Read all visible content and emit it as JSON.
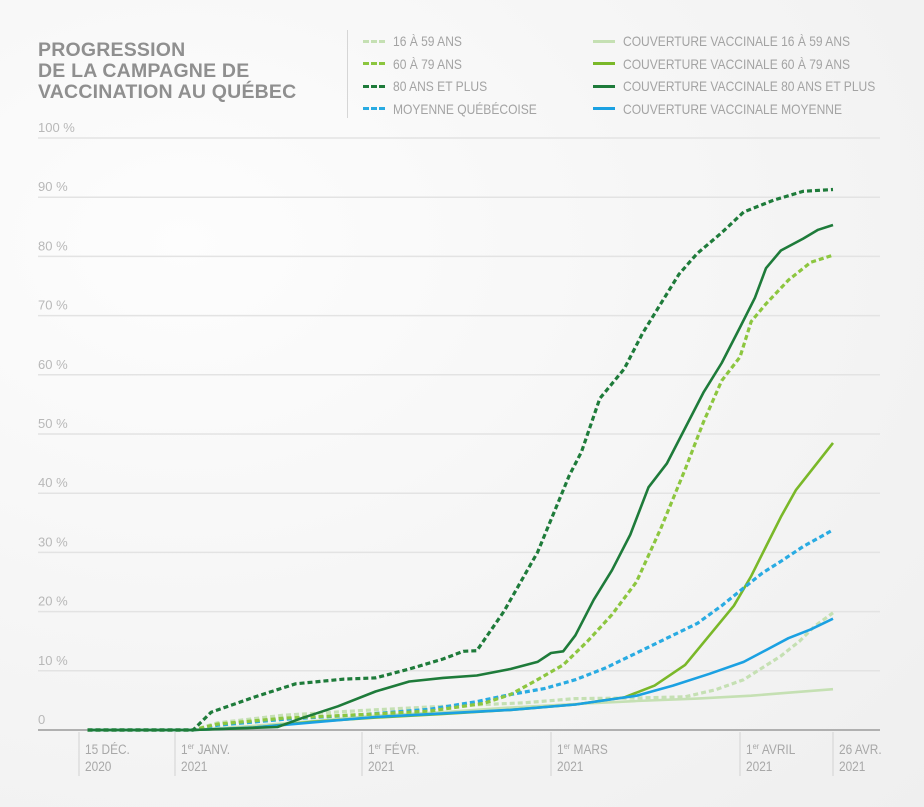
{
  "chart_data": {
    "type": "line",
    "title": "PROGRESSION DE LA CAMPAGNE DE VACCINATION AU QUÉBEC",
    "title_lines": [
      "PROGRESSION",
      "DE LA CAMPAGNE DE",
      "VACCINATION AU QUÉBEC"
    ],
    "xlabel": "",
    "ylabel": "",
    "x_unit": "days since 15 Dec 2020",
    "xlim": [
      0,
      132
    ],
    "ylim": [
      0,
      100
    ],
    "grid": true,
    "legend_position": "top-right",
    "y_ticks": [
      {
        "value": 0,
        "label": "0"
      },
      {
        "value": 10,
        "label": "10 %"
      },
      {
        "value": 20,
        "label": "20 %"
      },
      {
        "value": 30,
        "label": "30 %"
      },
      {
        "value": 40,
        "label": "40 %"
      },
      {
        "value": 50,
        "label": "50 %"
      },
      {
        "value": 60,
        "label": "60 %"
      },
      {
        "value": 70,
        "label": "70 %"
      },
      {
        "value": 80,
        "label": "80 %"
      },
      {
        "value": 90,
        "label": "90 %"
      },
      {
        "value": 100,
        "label": "100 %"
      }
    ],
    "x_ticks": [
      {
        "value": 0,
        "line1": "15 DÉC.",
        "sup": "",
        "line1b": "",
        "line2": "2020"
      },
      {
        "value": 17,
        "line1": "1",
        "sup": "er",
        "line1b": " JANV.",
        "line2": "2021"
      },
      {
        "value": 48,
        "line1": "1",
        "sup": "er",
        "line1b": " FÉVR.",
        "line2": "2021"
      },
      {
        "value": 76,
        "line1": "1",
        "sup": "er",
        "line1b": " MARS",
        "line2": "2021"
      },
      {
        "value": 107,
        "line1": "1",
        "sup": "er",
        "line1b": " AVRIL",
        "line2": "2021"
      },
      {
        "value": 132,
        "line1": "26 AVR.",
        "sup": "",
        "line1b": "",
        "line2": "2021"
      }
    ],
    "series": [
      {
        "name": "16 À 59 ANS",
        "style": "dashed",
        "color": "#c5e0b3",
        "points": [
          [
            1.5,
            0
          ],
          [
            20,
            0
          ],
          [
            24,
            1.2
          ],
          [
            35,
            2.5
          ],
          [
            48,
            3.3
          ],
          [
            60,
            4.0
          ],
          [
            72,
            4.6
          ],
          [
            80,
            5.3
          ],
          [
            90,
            5.4
          ],
          [
            98,
            5.6
          ],
          [
            103,
            6.8
          ],
          [
            108,
            8.5
          ],
          [
            113,
            10.5
          ],
          [
            118,
            12.5
          ],
          [
            123,
            15
          ],
          [
            127,
            17.5
          ],
          [
            132,
            19.8
          ]
        ]
      },
      {
        "name": "60 À 79 ANS",
        "style": "dashed",
        "color": "#8cc63f",
        "points": [
          [
            1.5,
            0
          ],
          [
            20,
            0
          ],
          [
            24,
            1
          ],
          [
            35,
            2
          ],
          [
            48,
            2.6
          ],
          [
            58,
            3.2
          ],
          [
            66,
            4.5
          ],
          [
            70,
            6
          ],
          [
            74,
            8.5
          ],
          [
            78,
            11
          ],
          [
            82,
            15
          ],
          [
            86,
            19.5
          ],
          [
            90,
            25
          ],
          [
            94,
            34
          ],
          [
            98,
            44
          ],
          [
            101,
            52
          ],
          [
            104,
            59
          ],
          [
            107,
            63
          ],
          [
            110,
            69
          ],
          [
            114,
            72
          ],
          [
            120,
            76
          ],
          [
            126,
            79
          ],
          [
            132,
            80.2
          ]
        ]
      },
      {
        "name": "80 ANS ET PLUS",
        "style": "dashed",
        "color": "#1e7b3a",
        "points": [
          [
            1.5,
            0
          ],
          [
            20,
            0
          ],
          [
            23,
            3
          ],
          [
            30,
            5.5
          ],
          [
            37,
            7.8
          ],
          [
            45,
            8.6
          ],
          [
            50,
            8.8
          ],
          [
            55,
            10.3
          ],
          [
            60,
            12
          ],
          [
            63,
            13.3
          ],
          [
            65,
            13.4
          ],
          [
            69,
            20
          ],
          [
            74,
            30
          ],
          [
            77,
            38
          ],
          [
            79,
            43
          ],
          [
            81,
            47
          ],
          [
            84,
            56
          ],
          [
            88,
            61
          ],
          [
            91,
            67
          ],
          [
            94,
            72
          ],
          [
            97,
            77
          ],
          [
            100,
            80.5
          ],
          [
            104,
            84
          ],
          [
            108,
            87.5
          ],
          [
            116,
            89.5
          ],
          [
            124,
            91
          ],
          [
            132,
            91.3
          ]
        ]
      },
      {
        "name": "MOYENNE QUÉBÉCOISE",
        "style": "dashed",
        "color": "#29abe2",
        "points": [
          [
            1.5,
            0
          ],
          [
            20,
            0
          ],
          [
            24,
            0.8
          ],
          [
            35,
            1.8
          ],
          [
            48,
            2.6
          ],
          [
            58,
            3.5
          ],
          [
            65,
            4.8
          ],
          [
            70,
            6
          ],
          [
            75,
            7
          ],
          [
            80,
            8.5
          ],
          [
            85,
            10.5
          ],
          [
            90,
            13
          ],
          [
            95,
            15.5
          ],
          [
            100,
            18
          ],
          [
            104,
            21
          ],
          [
            108,
            24
          ],
          [
            113,
            26.5
          ],
          [
            118,
            28.5
          ],
          [
            124,
            31
          ],
          [
            132,
            33.8
          ]
        ]
      },
      {
        "name": "COUVERTURE VACCINALE 16 À 59 ANS",
        "style": "solid",
        "color": "#c5e0b3",
        "points": [
          [
            1.5,
            0
          ],
          [
            20,
            0
          ],
          [
            30,
            0.7
          ],
          [
            40,
            1.5
          ],
          [
            50,
            2.4
          ],
          [
            60,
            3
          ],
          [
            70,
            3.8
          ],
          [
            80,
            4.4
          ],
          [
            90,
            4.9
          ],
          [
            100,
            5.3
          ],
          [
            110,
            5.8
          ],
          [
            120,
            6.3
          ],
          [
            132,
            6.9
          ]
        ]
      },
      {
        "name": "COUVERTURE VACCINALE 60 À 79 ANS",
        "style": "solid",
        "color": "#7ab829",
        "points": [
          [
            1.5,
            0
          ],
          [
            20,
            0
          ],
          [
            30,
            0.4
          ],
          [
            40,
            1.4
          ],
          [
            50,
            2.1
          ],
          [
            60,
            2.7
          ],
          [
            70,
            3.4
          ],
          [
            80,
            4.3
          ],
          [
            88,
            5.5
          ],
          [
            93,
            7.5
          ],
          [
            98,
            11
          ],
          [
            102,
            16
          ],
          [
            106,
            21
          ],
          [
            110,
            26
          ],
          [
            114,
            31
          ],
          [
            118,
            36
          ],
          [
            122,
            40.5
          ],
          [
            127,
            44.5
          ],
          [
            132,
            48.5
          ]
        ]
      },
      {
        "name": "COUVERTURE VACCINALE 80 ANS ET PLUS",
        "style": "solid",
        "color": "#1e7b3a",
        "points": [
          [
            1.5,
            0
          ],
          [
            20,
            0
          ],
          [
            34,
            0.5
          ],
          [
            38,
            2
          ],
          [
            44,
            4
          ],
          [
            50,
            6.5
          ],
          [
            55,
            8.2
          ],
          [
            60,
            8.8
          ],
          [
            65,
            9.2
          ],
          [
            70,
            10.3
          ],
          [
            74,
            11.5
          ],
          [
            76,
            13
          ],
          [
            78,
            13.3
          ],
          [
            80,
            16
          ],
          [
            83,
            22
          ],
          [
            86,
            27
          ],
          [
            89,
            33
          ],
          [
            92,
            41
          ],
          [
            95,
            45
          ],
          [
            98,
            51
          ],
          [
            101,
            57
          ],
          [
            104,
            62
          ],
          [
            107,
            68
          ],
          [
            111,
            73
          ],
          [
            114,
            78
          ],
          [
            118,
            81
          ],
          [
            124,
            83
          ],
          [
            128,
            84.5
          ],
          [
            132,
            85.3
          ]
        ]
      },
      {
        "name": "COUVERTURE VACCINALE MOYENNE",
        "style": "solid",
        "color": "#1ba1e2",
        "points": [
          [
            1.5,
            0
          ],
          [
            20,
            0
          ],
          [
            30,
            0.4
          ],
          [
            40,
            1.3
          ],
          [
            50,
            2.2
          ],
          [
            60,
            2.8
          ],
          [
            70,
            3.4
          ],
          [
            80,
            4.3
          ],
          [
            90,
            5.8
          ],
          [
            96,
            7.5
          ],
          [
            102,
            9.5
          ],
          [
            108,
            11.5
          ],
          [
            114,
            13.5
          ],
          [
            120,
            15.5
          ],
          [
            126,
            17
          ],
          [
            132,
            18.8
          ]
        ]
      }
    ]
  }
}
